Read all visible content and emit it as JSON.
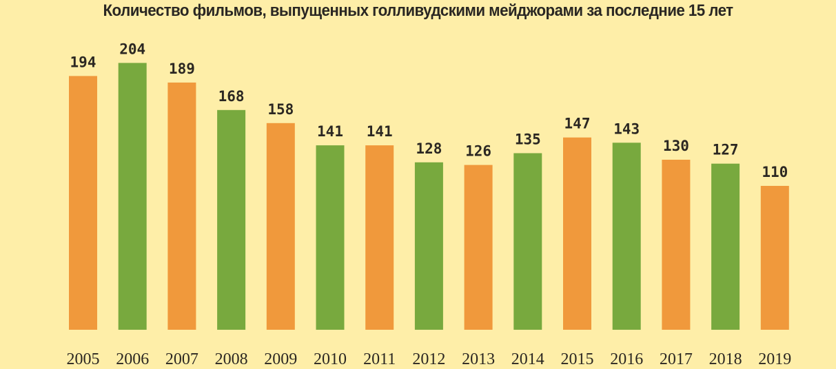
{
  "chart_data": {
    "type": "bar",
    "title": "Количество фильмов, выпущенных голливудскими мейджорами за последние 15 лет",
    "xlabel": "",
    "ylabel": "",
    "ylim": [
      0,
      210
    ],
    "grid": false,
    "categories": [
      "2005",
      "2006",
      "2007",
      "2008",
      "2009",
      "2010",
      "2011",
      "2012",
      "2013",
      "2014",
      "2015",
      "2016",
      "2017",
      "2018",
      "2019"
    ],
    "values": [
      194,
      204,
      189,
      168,
      158,
      141,
      141,
      128,
      126,
      135,
      147,
      143,
      130,
      127,
      110
    ],
    "bar_colors": [
      "#f0993c",
      "#78a93e",
      "#f0993c",
      "#78a93e",
      "#f0993c",
      "#78a93e",
      "#f0993c",
      "#78a93e",
      "#f0993c",
      "#78a93e",
      "#f0993c",
      "#78a93e",
      "#f0993c",
      "#78a93e",
      "#f0993c"
    ],
    "colors": {
      "background": "#feeea8",
      "text": "#2b2722"
    }
  }
}
